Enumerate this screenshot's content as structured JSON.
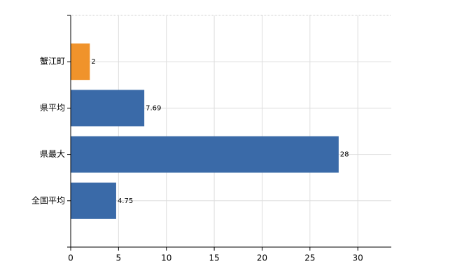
{
  "chart_data": {
    "type": "hbar",
    "categories": [
      "蟹江町",
      "県平均",
      "県最大",
      "全国平均"
    ],
    "values": [
      2,
      7.69,
      28,
      4.75
    ],
    "colors": [
      "#f0932b",
      "#3a6aa8",
      "#3a6aa8",
      "#3a6aa8"
    ],
    "xlim": [
      0,
      33.5
    ],
    "xticks": [
      0,
      5,
      10,
      15,
      20,
      25,
      30
    ],
    "grid": true
  }
}
